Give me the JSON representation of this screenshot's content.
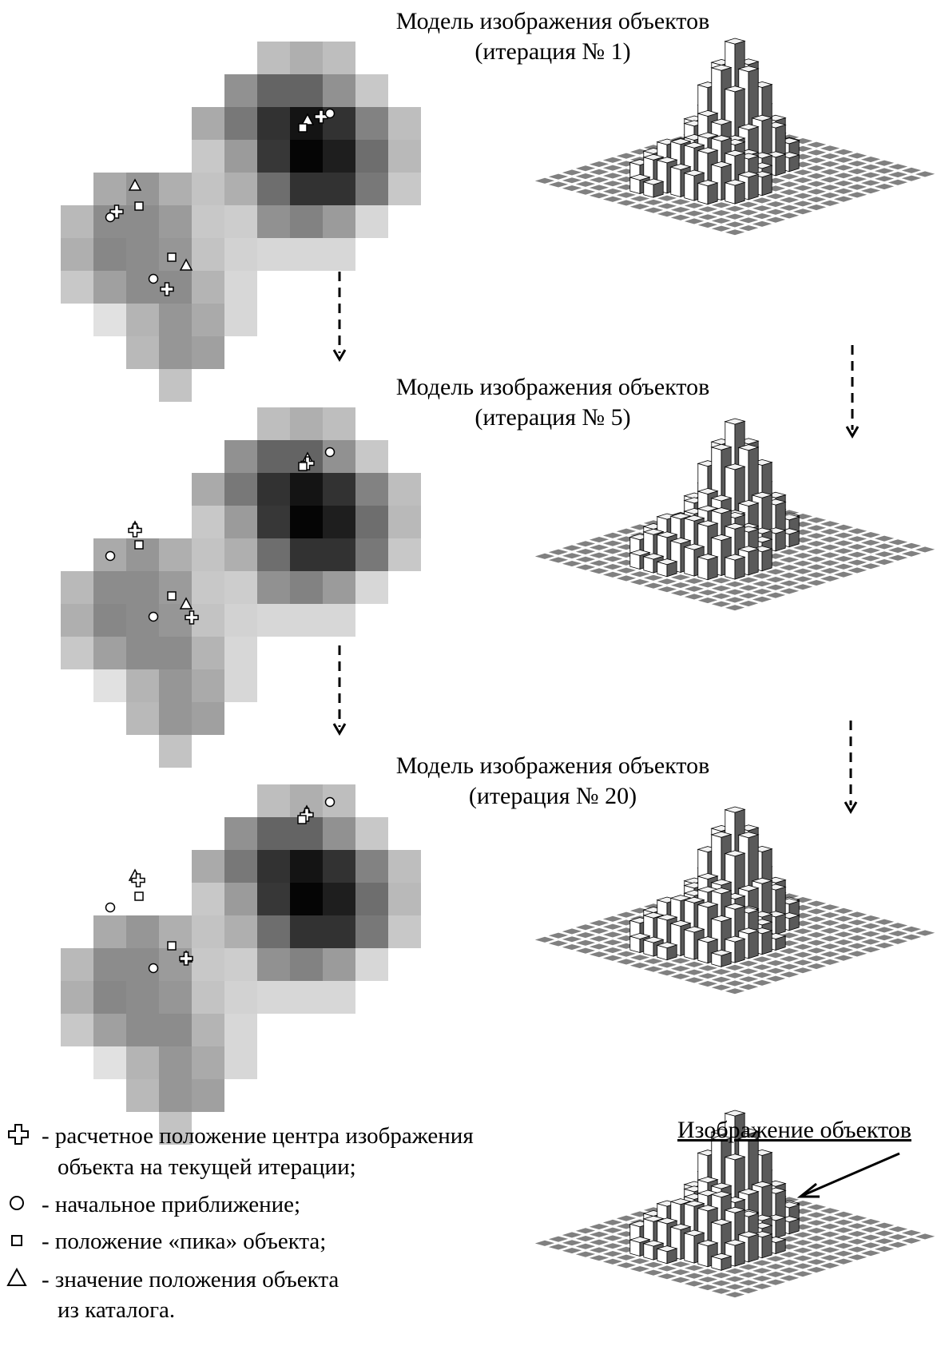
{
  "panels": [
    {
      "title_line1": "Модель изображения объектов",
      "title_line2": "(итерация № 1)"
    },
    {
      "title_line1": "Модель изображения объектов",
      "title_line2": "(итерация № 5)"
    },
    {
      "title_line1": "Модель изображения объектов",
      "title_line2": "(итерация № 20)"
    }
  ],
  "legend": {
    "computed": "- расчетное положение центра изображения",
    "computed_cont": "объекта на текущей итерации;",
    "initial": "- начальное приближение;",
    "peak": "- положение «пика» объекта;",
    "catalog": "- значение положения объекта",
    "catalog_cont": "из каталога."
  },
  "object_image_label": "Изображение объектов",
  "icons": {
    "computed": "plus-icon",
    "initial": "circle-icon",
    "peak": "square-icon",
    "catalog": "triangle-icon"
  },
  "colors": {
    "dark": "#000000",
    "light": "#ffffff"
  }
}
